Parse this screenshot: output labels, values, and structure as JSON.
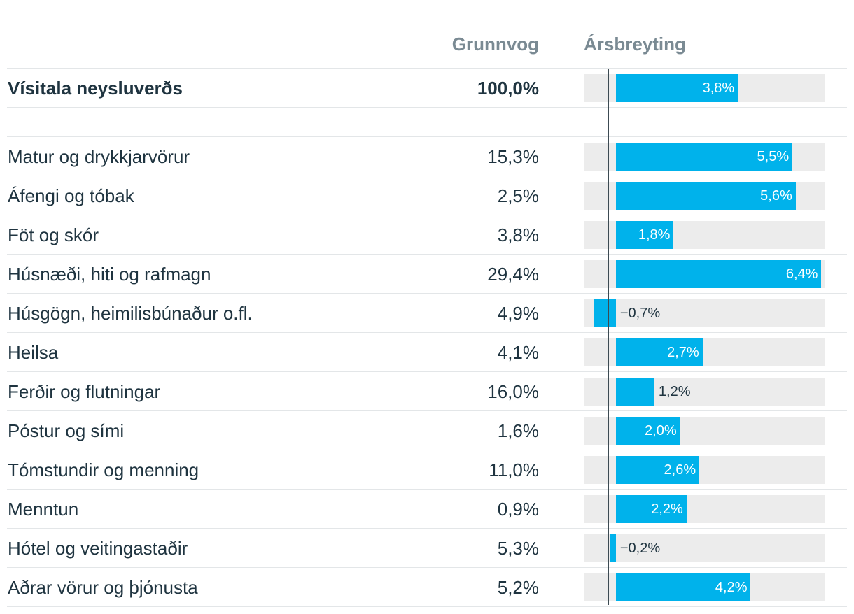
{
  "headers": {
    "weight": "Grunnvog",
    "change": "Ársbreyting"
  },
  "colors": {
    "bar": "#00b2eb",
    "track": "#ececec",
    "text": "#1f3440",
    "header": "#7a8a93"
  },
  "chart_data": {
    "type": "bar",
    "orientation": "horizontal",
    "xlim": [
      -1.0,
      6.5
    ],
    "rows": [
      {
        "label": "Vísitala neysluverðs",
        "weight": "100,0%",
        "value": 3.8,
        "value_label": "3,8%",
        "total": true
      },
      {
        "label": "Matur og drykkjarvörur",
        "weight": "15,3%",
        "value": 5.5,
        "value_label": "5,5%"
      },
      {
        "label": "Áfengi og tóbak",
        "weight": "2,5%",
        "value": 5.6,
        "value_label": "5,6%"
      },
      {
        "label": "Föt og skór",
        "weight": "3,8%",
        "value": 1.8,
        "value_label": "1,8%"
      },
      {
        "label": "Húsnæði, hiti og rafmagn",
        "weight": "29,4%",
        "value": 6.4,
        "value_label": "6,4%"
      },
      {
        "label": "Húsgögn, heimilisbúnaður o.fl.",
        "weight": "4,9%",
        "value": -0.7,
        "value_label": "−0,7%"
      },
      {
        "label": "Heilsa",
        "weight": "4,1%",
        "value": 2.7,
        "value_label": "2,7%"
      },
      {
        "label": "Ferðir og flutningar",
        "weight": "16,0%",
        "value": 1.2,
        "value_label": "1,2%"
      },
      {
        "label": "Póstur og sími",
        "weight": "1,6%",
        "value": 2.0,
        "value_label": "2,0%"
      },
      {
        "label": "Tómstundir og menning",
        "weight": "11,0%",
        "value": 2.6,
        "value_label": "2,6%"
      },
      {
        "label": "Menntun",
        "weight": "0,9%",
        "value": 2.2,
        "value_label": "2,2%"
      },
      {
        "label": "Hótel og veitingastaðir",
        "weight": "5,3%",
        "value": -0.2,
        "value_label": "−0,2%"
      },
      {
        "label": "Aðrar vörur og þjónusta",
        "weight": "5,2%",
        "value": 4.2,
        "value_label": "4,2%"
      }
    ]
  }
}
